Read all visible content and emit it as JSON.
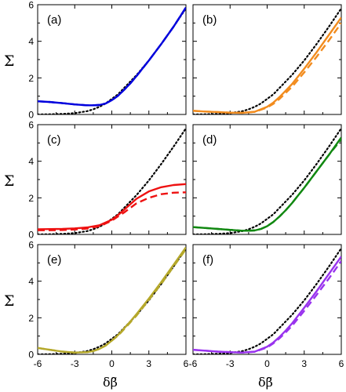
{
  "chart_data": {
    "type": "line",
    "layout": {
      "rows": 3,
      "cols": 2
    },
    "xlabel": "δβ̃",
    "ylabel": "Σ",
    "xlim": [
      -6,
      6
    ],
    "ylim": [
      0,
      6
    ],
    "xticks": [
      "-6",
      "-3",
      "0",
      "3",
      "6"
    ],
    "yticks": [
      "0",
      "2",
      "4",
      "6"
    ],
    "reference_series": {
      "style": "dotted",
      "color": "#000000",
      "x": [
        -6,
        -5,
        -4,
        -3,
        -2,
        -1.5,
        -1,
        -0.5,
        0,
        0.5,
        1,
        1.5,
        2,
        3,
        4,
        5,
        6
      ],
      "y": [
        0,
        0.01,
        0.03,
        0.07,
        0.18,
        0.28,
        0.42,
        0.6,
        0.85,
        1.1,
        1.45,
        1.8,
        2.15,
        2.95,
        3.85,
        4.8,
        5.8
      ]
    },
    "panels": [
      {
        "label": "(a)",
        "color": "#0000dd",
        "series": [
          {
            "style": "solid",
            "x": [
              -6,
              -5,
              -4,
              -3,
              -2,
              -1.5,
              -1,
              -0.5,
              0,
              0.5,
              1,
              1.5,
              2,
              3,
              4,
              5,
              6
            ],
            "y": [
              0.72,
              0.68,
              0.62,
              0.55,
              0.5,
              0.5,
              0.52,
              0.6,
              0.78,
              1.02,
              1.35,
              1.7,
              2.1,
              2.95,
              3.85,
              4.8,
              5.85
            ]
          },
          {
            "style": "dashed",
            "x": [
              -6,
              -5,
              -4,
              -3,
              -2,
              -1.5,
              -1,
              -0.5,
              0,
              0.5,
              1,
              1.5,
              2,
              3,
              4,
              5,
              6
            ],
            "y": [
              0.72,
              0.68,
              0.62,
              0.55,
              0.5,
              0.5,
              0.52,
              0.6,
              0.78,
              1.02,
              1.35,
              1.7,
              2.1,
              2.95,
              3.85,
              4.8,
              5.85
            ]
          }
        ]
      },
      {
        "label": "(b)",
        "color": "#f28c1e",
        "series": [
          {
            "style": "solid",
            "x": [
              -6,
              -5,
              -4,
              -3,
              -2,
              -1,
              0,
              0.5,
              1,
              1.5,
              2,
              3,
              4,
              5,
              6
            ],
            "y": [
              0.2,
              0.16,
              0.13,
              0.1,
              0.09,
              0.15,
              0.42,
              0.65,
              0.95,
              1.3,
              1.65,
              2.5,
              3.4,
              4.35,
              5.3
            ]
          },
          {
            "style": "dashed",
            "x": [
              -6,
              -5,
              -4,
              -3,
              -2,
              -1,
              0,
              0.5,
              1,
              1.5,
              2,
              3,
              4,
              5,
              6
            ],
            "y": [
              0.2,
              0.16,
              0.13,
              0.1,
              0.09,
              0.14,
              0.38,
              0.58,
              0.85,
              1.18,
              1.5,
              2.3,
              3.15,
              4.05,
              5.0
            ]
          }
        ]
      },
      {
        "label": "(c)",
        "color": "#ee1111",
        "series": [
          {
            "style": "solid",
            "x": [
              -6,
              -5,
              -4,
              -3,
              -2,
              -1,
              0,
              0.5,
              1,
              1.5,
              2,
              3,
              4,
              5,
              6
            ],
            "y": [
              0.28,
              0.29,
              0.3,
              0.33,
              0.38,
              0.5,
              0.8,
              1.05,
              1.35,
              1.65,
              1.95,
              2.35,
              2.58,
              2.7,
              2.75
            ]
          },
          {
            "style": "dashed",
            "x": [
              -6,
              -5,
              -4,
              -3,
              -2,
              -1,
              0,
              0.5,
              1,
              1.5,
              2,
              3,
              4,
              5,
              6
            ],
            "y": [
              0.23,
              0.23,
              0.24,
              0.27,
              0.32,
              0.45,
              0.75,
              0.98,
              1.2,
              1.45,
              1.7,
              2.0,
              2.2,
              2.28,
              2.3
            ]
          }
        ]
      },
      {
        "label": "(d)",
        "color": "#118811",
        "series": [
          {
            "style": "solid",
            "x": [
              -6,
              -5,
              -4,
              -3,
              -2,
              -1.5,
              -1,
              -0.5,
              0,
              0.5,
              1,
              1.5,
              2,
              3,
              4,
              5,
              6
            ],
            "y": [
              0.4,
              0.35,
              0.3,
              0.25,
              0.2,
              0.2,
              0.22,
              0.3,
              0.45,
              0.68,
              0.98,
              1.32,
              1.7,
              2.55,
              3.45,
              4.35,
              5.3
            ]
          },
          {
            "style": "dashed",
            "x": [
              -6,
              -5,
              -4,
              -3,
              -2,
              -1.5,
              -1,
              -0.5,
              0,
              0.5,
              1,
              1.5,
              2,
              3,
              4,
              5,
              6
            ],
            "y": [
              0.4,
              0.35,
              0.3,
              0.25,
              0.2,
              0.2,
              0.22,
              0.3,
              0.45,
              0.68,
              0.98,
              1.32,
              1.7,
              2.55,
              3.45,
              4.35,
              5.2
            ]
          }
        ]
      },
      {
        "label": "(e)",
        "color": "#b5a82a",
        "series": [
          {
            "style": "solid",
            "x": [
              -6,
              -5,
              -4,
              -3,
              -2,
              -1.5,
              -1,
              -0.5,
              0,
              0.5,
              1,
              1.5,
              2,
              3,
              4,
              5,
              6
            ],
            "y": [
              0.35,
              0.25,
              0.15,
              0.1,
              0.12,
              0.18,
              0.3,
              0.48,
              0.75,
              1.05,
              1.42,
              1.8,
              2.2,
              3.05,
              3.95,
              4.9,
              5.85
            ]
          },
          {
            "style": "dashed",
            "x": [
              -6,
              -5,
              -4,
              -3,
              -2,
              -1.5,
              -1,
              -0.5,
              0,
              0.5,
              1,
              1.5,
              2,
              3,
              4,
              5,
              6
            ],
            "y": [
              0.35,
              0.25,
              0.15,
              0.1,
              0.12,
              0.18,
              0.3,
              0.48,
              0.75,
              1.02,
              1.38,
              1.75,
              2.12,
              2.98,
              3.85,
              4.8,
              5.75
            ]
          }
        ]
      },
      {
        "label": "(f)",
        "color": "#9933ee",
        "series": [
          {
            "style": "solid",
            "x": [
              -6,
              -5,
              -4,
              -3,
              -2,
              -1,
              0,
              0.5,
              1,
              1.5,
              2,
              3,
              4,
              5,
              6
            ],
            "y": [
              0.25,
              0.2,
              0.15,
              0.12,
              0.1,
              0.15,
              0.42,
              0.65,
              0.95,
              1.3,
              1.68,
              2.55,
              3.45,
              4.4,
              5.35
            ]
          },
          {
            "style": "dashed",
            "x": [
              -6,
              -5,
              -4,
              -3,
              -2,
              -1,
              0,
              0.5,
              1,
              1.5,
              2,
              3,
              4,
              5,
              6
            ],
            "y": [
              0.25,
              0.2,
              0.15,
              0.12,
              0.1,
              0.14,
              0.38,
              0.6,
              0.88,
              1.2,
              1.55,
              2.38,
              3.25,
              4.15,
              5.1
            ]
          }
        ]
      }
    ]
  }
}
